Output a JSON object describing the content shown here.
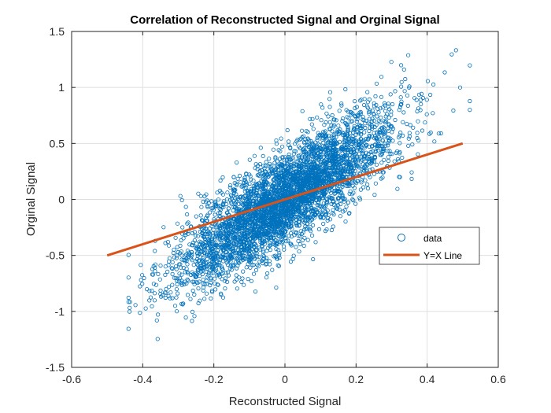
{
  "chart_data": {
    "type": "scatter",
    "title": "Correlation of Reconstructed Signal and Orginal Signal",
    "xlabel": "Reconstructed Signal",
    "ylabel": "Orginal Signal",
    "xlim": [
      -0.6,
      0.6
    ],
    "ylim": [
      -1.5,
      1.5
    ],
    "x_ticks": [
      -0.6,
      -0.4,
      -0.2,
      0,
      0.2,
      0.4,
      0.6
    ],
    "x_tick_labels": [
      "-0.6",
      "-0.4",
      "-0.2",
      "0",
      "0.2",
      "0.4",
      "0.6"
    ],
    "y_ticks": [
      -1.5,
      -1,
      -0.5,
      0,
      0.5,
      1,
      1.5
    ],
    "y_tick_labels": [
      "-1.5",
      "-1",
      "-0.5",
      "0",
      "0.5",
      "1",
      "1.5"
    ],
    "grid": true,
    "legend_position": "right",
    "series": [
      {
        "name": "data",
        "kind": "scatter",
        "marker": "circle",
        "color": "#0072BD",
        "distribution": {
          "x_range": [
            -0.44,
            0.52
          ],
          "y_range": [
            -1.25,
            1.35
          ],
          "note_slope": 2.1,
          "note_spread_y": 0.42
        }
      },
      {
        "name": "Y=X Line",
        "kind": "line",
        "color": "#D95319",
        "x": [
          -0.5,
          0.5
        ],
        "y": [
          -0.5,
          0.5
        ]
      }
    ]
  }
}
